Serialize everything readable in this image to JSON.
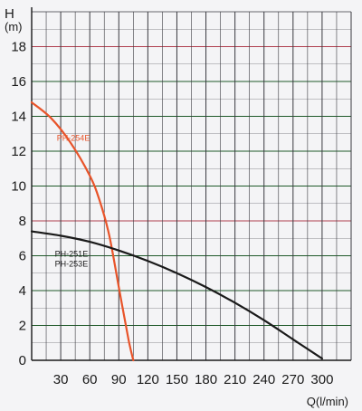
{
  "chart_data": {
    "type": "line",
    "xlabel": "Q(l/min)",
    "ylabel": "H",
    "yunit": "(m)",
    "xlim": [
      0,
      330
    ],
    "ylim": [
      0,
      20
    ],
    "x_ticks": [
      30,
      60,
      90,
      120,
      150,
      180,
      210,
      240,
      270,
      300
    ],
    "y_ticks": [
      0,
      2,
      4,
      6,
      8,
      10,
      12,
      14,
      16,
      18
    ],
    "grid": true,
    "colors": {
      "background": "#f4f4f6",
      "grid_major": "#1f5a2a",
      "grid_accent": "#b04050",
      "grid_vertical": "#3a3a40"
    },
    "series": [
      {
        "name": "PH-254E",
        "color": "#e8542a",
        "x": [
          0,
          20,
          40,
          60,
          70,
          80,
          90,
          100,
          105
        ],
        "y": [
          14.8,
          13.9,
          12.5,
          10.6,
          9.2,
          7.2,
          4.2,
          1.2,
          0
        ]
      },
      {
        "name": "PH-251E\nPH-253E",
        "color": "#1a1a1a",
        "x": [
          0,
          30,
          60,
          90,
          120,
          150,
          180,
          210,
          240,
          270,
          300
        ],
        "y": [
          7.4,
          7.15,
          6.8,
          6.3,
          5.7,
          5.0,
          4.2,
          3.3,
          2.3,
          1.2,
          0.1
        ]
      }
    ]
  }
}
